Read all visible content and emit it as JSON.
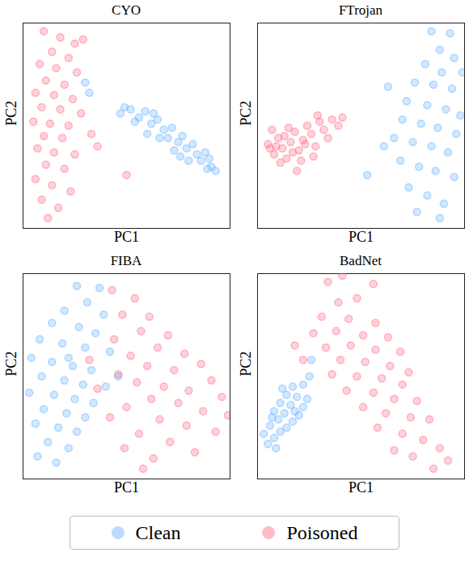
{
  "chart_data": [
    {
      "type": "scatter",
      "title": "CYO",
      "x_label": "PC1",
      "y_label": "PC2",
      "xlim": [
        0,
        10
      ],
      "ylim": [
        0,
        10
      ],
      "tick_labels": false,
      "legend": "bottom",
      "series": [
        {
          "name": "Clean",
          "color": "#66b2ff",
          "values": [
            [
              4.7,
              5.6
            ],
            [
              5.2,
              5.8
            ],
            [
              5.6,
              5.4
            ],
            [
              5.9,
              5.7
            ],
            [
              6.2,
              5.1
            ],
            [
              6.5,
              5.3
            ],
            [
              6.8,
              4.8
            ],
            [
              7.0,
              4.4
            ],
            [
              7.2,
              4.9
            ],
            [
              7.5,
              4.2
            ],
            [
              7.7,
              4.5
            ],
            [
              7.9,
              3.9
            ],
            [
              8.2,
              4.1
            ],
            [
              8.4,
              3.6
            ],
            [
              8.6,
              3.3
            ],
            [
              8.8,
              3.7
            ],
            [
              9.1,
              3.0
            ],
            [
              9.3,
              2.8
            ],
            [
              6.0,
              4.6
            ],
            [
              6.6,
              4.4
            ],
            [
              7.3,
              3.8
            ],
            [
              8.0,
              3.3
            ],
            [
              5.4,
              5.2
            ],
            [
              8.9,
              2.9
            ],
            [
              3.0,
              7.1
            ],
            [
              3.2,
              6.6
            ],
            [
              4.9,
              5.9
            ],
            [
              9.0,
              3.4
            ],
            [
              7.6,
              3.5
            ],
            [
              6.3,
              5.6
            ]
          ]
        },
        {
          "name": "Poisoned",
          "color": "#ff6b81",
          "values": [
            [
              1.0,
              9.6
            ],
            [
              1.8,
              9.3
            ],
            [
              2.5,
              9.0
            ],
            [
              2.9,
              9.2
            ],
            [
              1.4,
              8.6
            ],
            [
              2.2,
              8.3
            ],
            [
              0.8,
              8.0
            ],
            [
              1.6,
              7.8
            ],
            [
              2.6,
              7.6
            ],
            [
              1.1,
              7.2
            ],
            [
              2.0,
              7.0
            ],
            [
              0.6,
              6.6
            ],
            [
              1.5,
              6.5
            ],
            [
              2.4,
              6.3
            ],
            [
              0.9,
              5.9
            ],
            [
              1.8,
              5.8
            ],
            [
              2.8,
              5.6
            ],
            [
              0.5,
              5.2
            ],
            [
              1.3,
              5.1
            ],
            [
              2.2,
              5.0
            ],
            [
              1.0,
              4.5
            ],
            [
              1.9,
              4.4
            ],
            [
              0.7,
              3.9
            ],
            [
              1.5,
              3.7
            ],
            [
              2.5,
              3.6
            ],
            [
              1.1,
              3.1
            ],
            [
              2.0,
              2.9
            ],
            [
              0.6,
              2.4
            ],
            [
              1.4,
              2.1
            ],
            [
              2.3,
              1.8
            ],
            [
              0.9,
              1.4
            ],
            [
              1.7,
              1.0
            ],
            [
              1.2,
              0.5
            ],
            [
              3.6,
              4.0
            ],
            [
              5.0,
              2.6
            ],
            [
              3.3,
              4.6
            ]
          ]
        }
      ]
    },
    {
      "type": "scatter",
      "title": "FTrojan",
      "x_label": "PC1",
      "y_label": "PC2",
      "xlim": [
        0,
        10
      ],
      "ylim": [
        0,
        10
      ],
      "tick_labels": false,
      "legend": "bottom",
      "series": [
        {
          "name": "Clean",
          "color": "#66b2ff",
          "values": [
            [
              8.4,
              9.6
            ],
            [
              9.3,
              9.5
            ],
            [
              8.8,
              8.7
            ],
            [
              9.5,
              8.3
            ],
            [
              8.1,
              8.0
            ],
            [
              8.9,
              7.6
            ],
            [
              7.6,
              7.1
            ],
            [
              8.5,
              7.0
            ],
            [
              9.4,
              6.8
            ],
            [
              6.3,
              6.9
            ],
            [
              7.2,
              6.2
            ],
            [
              8.2,
              6.0
            ],
            [
              9.1,
              5.8
            ],
            [
              9.8,
              5.5
            ],
            [
              7.0,
              5.3
            ],
            [
              7.9,
              5.1
            ],
            [
              8.7,
              4.9
            ],
            [
              9.6,
              4.6
            ],
            [
              6.6,
              4.4
            ],
            [
              7.5,
              4.2
            ],
            [
              8.4,
              4.0
            ],
            [
              9.2,
              3.7
            ],
            [
              6.9,
              3.3
            ],
            [
              7.8,
              3.0
            ],
            [
              8.6,
              2.8
            ],
            [
              9.5,
              2.5
            ],
            [
              7.3,
              2.0
            ],
            [
              8.2,
              1.6
            ],
            [
              9.0,
              1.2
            ],
            [
              7.7,
              0.8
            ],
            [
              8.8,
              0.5
            ],
            [
              5.3,
              2.6
            ],
            [
              6.1,
              4.0
            ],
            [
              9.9,
              7.6
            ]
          ]
        },
        {
          "name": "Poisoned",
          "color": "#ff6b81",
          "values": [
            [
              0.5,
              4.1
            ],
            [
              0.8,
              3.6
            ],
            [
              1.0,
              4.4
            ],
            [
              1.2,
              3.9
            ],
            [
              1.4,
              3.4
            ],
            [
              1.6,
              4.2
            ],
            [
              1.8,
              4.7
            ],
            [
              2.0,
              3.8
            ],
            [
              2.2,
              4.3
            ],
            [
              2.4,
              5.0
            ],
            [
              2.6,
              4.6
            ],
            [
              2.8,
              4.0
            ],
            [
              3.0,
              5.2
            ],
            [
              3.2,
              4.8
            ],
            [
              3.4,
              4.4
            ],
            [
              3.6,
              5.3
            ],
            [
              3.9,
              5.0
            ],
            [
              4.1,
              5.4
            ],
            [
              0.7,
              4.8
            ],
            [
              1.1,
              3.2
            ],
            [
              1.5,
              4.9
            ],
            [
              2.1,
              3.3
            ],
            [
              2.7,
              3.5
            ],
            [
              1.9,
              2.8
            ],
            [
              2.9,
              5.5
            ],
            [
              0.6,
              3.9
            ],
            [
              1.3,
              4.5
            ],
            [
              0.9,
              4.0
            ],
            [
              1.7,
              3.7
            ],
            [
              2.3,
              4.1
            ]
          ]
        }
      ]
    },
    {
      "type": "scatter",
      "title": "FIBA",
      "x_label": "PC1",
      "y_label": "PC2",
      "xlim": [
        0,
        10
      ],
      "ylim": [
        0,
        10
      ],
      "tick_labels": false,
      "legend": "bottom",
      "series": [
        {
          "name": "Clean",
          "color": "#66b2ff",
          "values": [
            [
              2.6,
              9.4
            ],
            [
              3.7,
              9.3
            ],
            [
              3.1,
              8.6
            ],
            [
              2.0,
              8.2
            ],
            [
              3.9,
              8.0
            ],
            [
              1.4,
              7.6
            ],
            [
              2.7,
              7.4
            ],
            [
              3.5,
              7.1
            ],
            [
              0.8,
              6.8
            ],
            [
              1.9,
              6.6
            ],
            [
              3.0,
              6.4
            ],
            [
              4.2,
              6.2
            ],
            [
              0.4,
              5.9
            ],
            [
              1.4,
              5.7
            ],
            [
              2.4,
              5.5
            ],
            [
              3.3,
              5.3
            ],
            [
              0.9,
              5.0
            ],
            [
              2.0,
              4.8
            ],
            [
              2.9,
              4.6
            ],
            [
              4.0,
              4.5
            ],
            [
              0.3,
              4.2
            ],
            [
              1.5,
              4.1
            ],
            [
              2.5,
              3.9
            ],
            [
              3.4,
              3.7
            ],
            [
              1.0,
              3.4
            ],
            [
              2.1,
              3.2
            ],
            [
              3.0,
              3.0
            ],
            [
              0.6,
              2.7
            ],
            [
              1.7,
              2.5
            ],
            [
              2.6,
              2.3
            ],
            [
              1.2,
              1.8
            ],
            [
              2.2,
              1.5
            ],
            [
              0.7,
              1.1
            ],
            [
              1.6,
              0.8
            ],
            [
              4.6,
              5.0
            ],
            [
              2.2,
              5.9
            ]
          ]
        },
        {
          "name": "Poisoned",
          "color": "#ff6b81",
          "values": [
            [
              4.3,
              9.2
            ],
            [
              5.4,
              8.8
            ],
            [
              4.8,
              8.0
            ],
            [
              6.1,
              7.9
            ],
            [
              5.7,
              7.2
            ],
            [
              7.0,
              7.0
            ],
            [
              4.4,
              6.8
            ],
            [
              6.5,
              6.4
            ],
            [
              7.8,
              6.1
            ],
            [
              5.2,
              6.0
            ],
            [
              8.6,
              5.6
            ],
            [
              6.0,
              5.5
            ],
            [
              7.3,
              5.3
            ],
            [
              4.6,
              5.1
            ],
            [
              9.1,
              4.8
            ],
            [
              5.5,
              4.7
            ],
            [
              6.8,
              4.5
            ],
            [
              8.0,
              4.3
            ],
            [
              3.6,
              4.4
            ],
            [
              9.6,
              4.0
            ],
            [
              6.2,
              3.9
            ],
            [
              7.5,
              3.7
            ],
            [
              5.0,
              3.5
            ],
            [
              8.7,
              3.3
            ],
            [
              4.2,
              3.0
            ],
            [
              6.6,
              2.9
            ],
            [
              7.9,
              2.6
            ],
            [
              5.6,
              2.2
            ],
            [
              9.3,
              2.3
            ],
            [
              7.1,
              1.8
            ],
            [
              4.9,
              1.5
            ],
            [
              8.3,
              1.3
            ],
            [
              6.3,
              1.0
            ],
            [
              5.8,
              0.5
            ],
            [
              9.9,
              3.1
            ],
            [
              3.2,
              5.8
            ]
          ]
        }
      ]
    },
    {
      "type": "scatter",
      "title": "BadNet",
      "x_label": "PC1",
      "y_label": "PC2",
      "xlim": [
        0,
        10
      ],
      "ylim": [
        0,
        10
      ],
      "tick_labels": false,
      "legend": "bottom",
      "series": [
        {
          "name": "Clean",
          "color": "#66b2ff",
          "values": [
            [
              0.5,
              1.7
            ],
            [
              0.8,
              2.0
            ],
            [
              1.1,
              2.3
            ],
            [
              0.6,
              2.6
            ],
            [
              1.4,
              2.5
            ],
            [
              1.0,
              2.9
            ],
            [
              1.7,
              2.8
            ],
            [
              0.8,
              3.3
            ],
            [
              1.3,
              3.2
            ],
            [
              2.0,
              3.1
            ],
            [
              1.1,
              3.7
            ],
            [
              1.6,
              3.6
            ],
            [
              2.2,
              3.5
            ],
            [
              1.4,
              4.1
            ],
            [
              1.9,
              4.0
            ],
            [
              2.4,
              3.9
            ],
            [
              1.7,
              4.5
            ],
            [
              2.2,
              4.6
            ],
            [
              2.5,
              5.0
            ],
            [
              0.3,
              2.2
            ],
            [
              0.9,
              1.5
            ],
            [
              1.2,
              4.4
            ],
            [
              2.6,
              5.8
            ],
            [
              1.8,
              3.3
            ],
            [
              0.7,
              3.0
            ]
          ]
        },
        {
          "name": "Poisoned",
          "color": "#ff6b81",
          "values": [
            [
              3.4,
              9.6
            ],
            [
              5.6,
              9.5
            ],
            [
              3.9,
              8.6
            ],
            [
              4.8,
              8.8
            ],
            [
              3.1,
              7.9
            ],
            [
              4.4,
              7.8
            ],
            [
              5.7,
              7.6
            ],
            [
              2.7,
              7.1
            ],
            [
              3.8,
              7.2
            ],
            [
              5.1,
              7.0
            ],
            [
              6.3,
              6.9
            ],
            [
              3.3,
              6.4
            ],
            [
              4.5,
              6.5
            ],
            [
              5.7,
              6.3
            ],
            [
              6.9,
              6.2
            ],
            [
              2.2,
              5.8
            ],
            [
              4.0,
              5.8
            ],
            [
              5.2,
              5.7
            ],
            [
              6.4,
              5.5
            ],
            [
              7.3,
              5.2
            ],
            [
              3.6,
              5.1
            ],
            [
              4.8,
              5.0
            ],
            [
              6.0,
              4.9
            ],
            [
              7.0,
              4.6
            ],
            [
              4.3,
              4.3
            ],
            [
              5.6,
              4.2
            ],
            [
              6.6,
              3.9
            ],
            [
              7.7,
              3.8
            ],
            [
              5.1,
              3.5
            ],
            [
              6.2,
              3.2
            ],
            [
              7.4,
              3.0
            ],
            [
              8.3,
              2.9
            ],
            [
              5.8,
              2.5
            ],
            [
              7.0,
              2.2
            ],
            [
              8.0,
              1.9
            ],
            [
              8.8,
              1.5
            ],
            [
              7.5,
              1.1
            ],
            [
              9.2,
              0.9
            ],
            [
              6.6,
              1.4
            ],
            [
              8.5,
              0.5
            ],
            [
              1.8,
              6.5
            ],
            [
              4.1,
              9.9
            ]
          ]
        }
      ]
    }
  ]
}
